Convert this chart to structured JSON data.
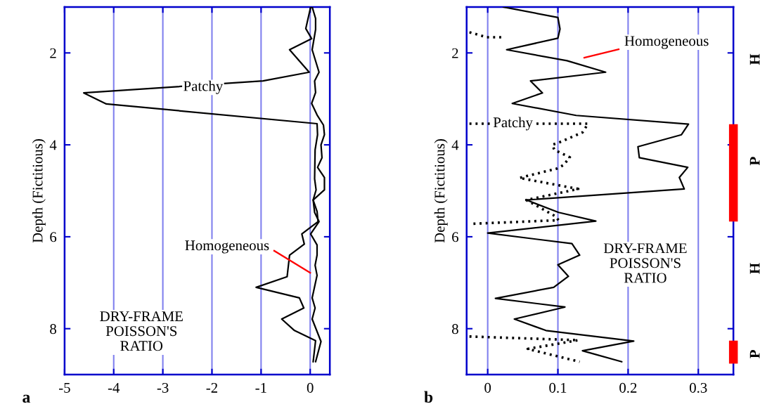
{
  "chart_data": [
    {
      "type": "line",
      "title": "a",
      "ylabel": "Depth (Fictitious)",
      "xlim": [
        -5,
        0.4
      ],
      "xticks": [
        -5,
        -4,
        -3,
        -2,
        -1,
        0
      ],
      "ylim": [
        9,
        1
      ],
      "yticks": [
        2,
        4,
        6,
        8
      ],
      "grid": "x",
      "line_style": "solid",
      "series": [
        {
          "color": "#000000",
          "x": [
            0.01,
            -0.09,
            0.03,
            -0.42,
            -0.02,
            -0.96,
            -4.61,
            -4.15,
            0.14,
            0.15,
            0.1,
            0.09,
            0.12,
            0.06,
            0.14,
            0.16,
            -0.17,
            -0.12,
            -0.42,
            -0.47,
            -1.1,
            -0.22,
            -0.13,
            -0.58,
            -0.32,
            0.11,
            0.06
          ],
          "values": [
            1.0,
            1.47,
            1.69,
            1.93,
            2.42,
            2.61,
            2.87,
            3.11,
            3.54,
            3.78,
            4.11,
            4.74,
            4.98,
            5.2,
            5.45,
            5.67,
            5.94,
            6.16,
            6.4,
            6.87,
            7.1,
            7.33,
            7.55,
            7.79,
            8.04,
            8.26,
            8.72
          ]
        },
        {
          "color": "#000000",
          "x": [
            0.04,
            0.11,
            0.11,
            0.04,
            0.18,
            0.09,
            0.11,
            0.03,
            0.14,
            0.27,
            0.29,
            0.22,
            0.24,
            0.15,
            0.29,
            0.29,
            0.06,
            0.09,
            0.18,
            0.01,
            0.14,
            0.14,
            0.1,
            0.14,
            0.04,
            0.1,
            0.04,
            0.22,
            0.11
          ],
          "values": [
            1.0,
            1.25,
            1.49,
            1.93,
            2.42,
            2.61,
            2.86,
            3.1,
            3.35,
            3.57,
            3.78,
            4.0,
            4.28,
            4.49,
            4.71,
            4.98,
            5.2,
            5.47,
            5.67,
            5.94,
            6.18,
            6.4,
            6.62,
            6.84,
            7.33,
            7.55,
            7.79,
            8.28,
            8.72
          ]
        }
      ],
      "annotations": [
        {
          "text": "Patchy",
          "x": -2.18,
          "y": 2.75
        },
        "Homogeneous",
        "DRY-FRAME\nPOISSON'S\nRATIO"
      ]
    },
    {
      "type": "line",
      "title": "b",
      "ylabel": "Depth (Fictitious)",
      "xlim": [
        -0.03,
        0.35
      ],
      "xticks": [
        0,
        0.1,
        0.2,
        0.3
      ],
      "ylim": [
        9,
        1
      ],
      "yticks": [
        2,
        4,
        6,
        8
      ],
      "grid": "x",
      "series": [
        {
          "color": "#000000",
          "line_style": "dotted",
          "x": [
            -0.026,
            -0.001,
            0.022,
            null,
            -0.026,
            0.143,
            0.135,
            0.103,
            0.092,
            0.095,
            0.117,
            0.108,
            0.098,
            0.045,
            0.129,
            0.055,
            0.096,
            0.101,
            -0.026,
            null,
            -0.026,
            0.129,
            0.057,
            0.131
          ],
          "values": [
            1.55,
            1.66,
            1.66,
            null,
            3.54,
            3.54,
            3.73,
            3.94,
            4.0,
            4.11,
            4.27,
            4.44,
            4.52,
            4.72,
            4.96,
            5.2,
            5.55,
            5.64,
            5.72,
            null,
            8.17,
            8.25,
            8.44,
            8.72
          ]
        },
        {
          "color": "#000000",
          "line_style": "solid",
          "x": [
            0.022,
            0.1,
            0.103,
            0.1,
            0.027,
            0.113,
            0.168,
            0.061,
            0.078,
            0.035,
            0.126,
            0.286,
            0.276,
            0.214,
            0.216,
            0.285,
            0.273,
            0.28,
            0.055,
            0.101,
            0.154,
            0.0,
            0.12,
            0.131,
            0.1,
            0.115,
            0.094,
            0.011,
            0.11,
            0.038,
            0.083,
            0.208,
            0.135,
            0.191
          ],
          "values": [
            1.0,
            1.23,
            1.48,
            1.68,
            1.93,
            2.17,
            2.42,
            2.61,
            2.87,
            3.1,
            3.36,
            3.55,
            3.78,
            4.04,
            4.28,
            4.49,
            4.71,
            4.96,
            5.2,
            5.47,
            5.66,
            5.92,
            6.15,
            6.4,
            6.61,
            6.86,
            7.1,
            7.34,
            7.53,
            7.79,
            8.04,
            8.27,
            8.48,
            8.72
          ]
        },
        {
          "color": "#ff0000",
          "line_style": "solid",
          "x": [
            0.35,
            0.35
          ],
          "values": [
            3.55,
            5.67
          ]
        },
        {
          "color": "#ff0000",
          "line_style": "solid",
          "x": [
            0.35,
            0.35
          ],
          "values": [
            8.26,
            8.76
          ]
        }
      ],
      "annotations": [
        "Homogeneous",
        {
          "text": "Patchy",
          "x": 0.036,
          "y": 3.54
        },
        "DRY-FRAME\nPOISSON'S\nRATIO",
        "H",
        "P",
        "H",
        "P"
      ]
    }
  ]
}
